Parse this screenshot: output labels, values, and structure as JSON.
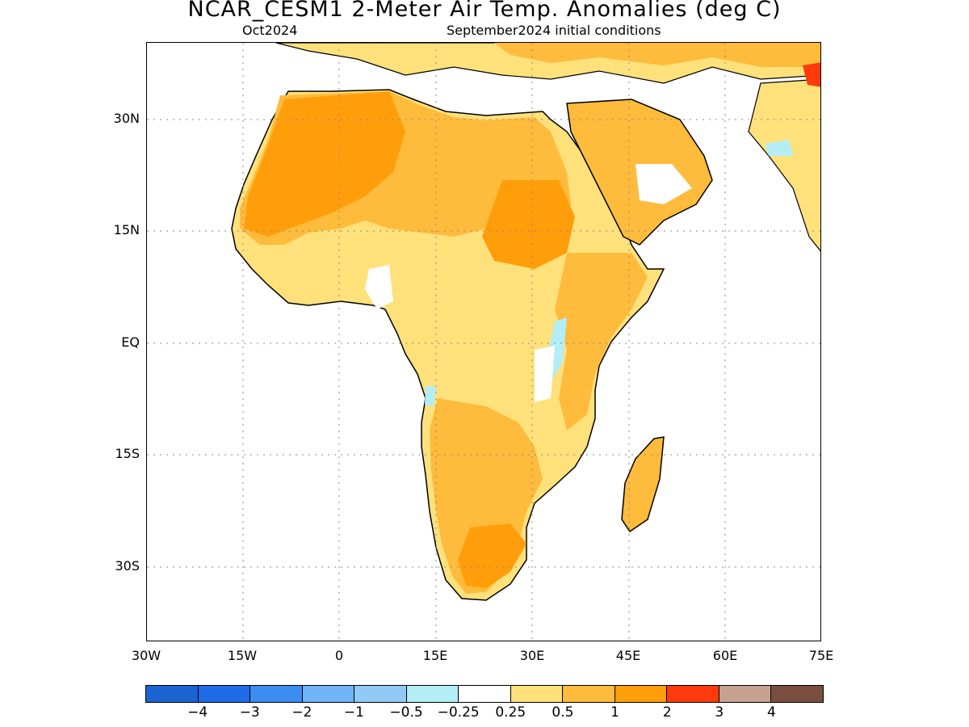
{
  "header": {
    "title": "NCAR_CESM1 2-Meter Air Temp. Anomalies (deg C)",
    "month": "Oct2024",
    "init": "September2024 initial conditions"
  },
  "axes": {
    "y_ticks": [
      "30N",
      "15N",
      "EQ",
      "15S",
      "30S"
    ],
    "x_ticks": [
      "30W",
      "15W",
      "0",
      "15E",
      "30E",
      "45E",
      "60E",
      "75E"
    ]
  },
  "colorbar": {
    "colors": [
      "#1b63d1",
      "#1f6be8",
      "#3d8cf0",
      "#72b2f6",
      "#92caf7",
      "#b3eef6",
      "#ffffff",
      "#ffe17c",
      "#ffbb3c",
      "#ff9e0a",
      "#ff3a0d",
      "#c8a090",
      "#7a4e3e"
    ],
    "labels": [
      "−4",
      "−3",
      "−2",
      "−1",
      "−0.5",
      "−0.25",
      "0.25",
      "0.5",
      "1",
      "2",
      "3",
      "4"
    ]
  }
}
